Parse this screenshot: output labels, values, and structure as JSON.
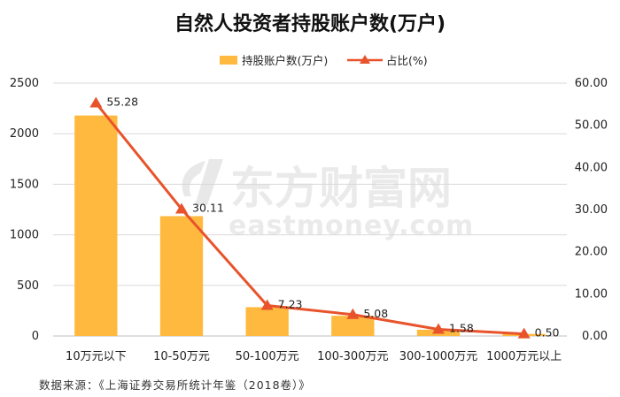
{
  "chart_data": {
    "type": "bar",
    "title": "自然人投资者持股账户数(万户)",
    "categories": [
      "10万元以下",
      "10-50万元",
      "50-100万元",
      "100-300万元",
      "300-1000万元",
      "1000万元以上"
    ],
    "series": [
      {
        "name": "持股账户数(万户)",
        "type": "bar",
        "axis": "left",
        "color": "#FFB93F",
        "values": [
          2180,
          1185,
          285,
          200,
          62,
          20
        ]
      },
      {
        "name": "占比(%)",
        "type": "line",
        "axis": "right",
        "color": "#E8532B",
        "values": [
          55.28,
          30.11,
          7.23,
          5.08,
          1.58,
          0.5
        ],
        "labels": [
          "55.28",
          "30.11",
          "7.23",
          "5.08",
          "1.58",
          "0.50"
        ]
      }
    ],
    "y_left": {
      "ylim": [
        0,
        2500
      ],
      "ticks": [
        "0",
        "500",
        "1000",
        "1500",
        "2000",
        "2500"
      ]
    },
    "y_right": {
      "ylim": [
        0,
        60
      ],
      "ticks": [
        "0.00",
        "10.00",
        "20.00",
        "30.00",
        "40.00",
        "50.00",
        "60.00"
      ]
    },
    "grid": true,
    "legend_position": "top"
  },
  "watermark": {
    "cn": "东方财富网",
    "en": "eastmoney.com"
  },
  "source": "数据来源：《上海证券交易所统计年鉴（2018卷）》"
}
